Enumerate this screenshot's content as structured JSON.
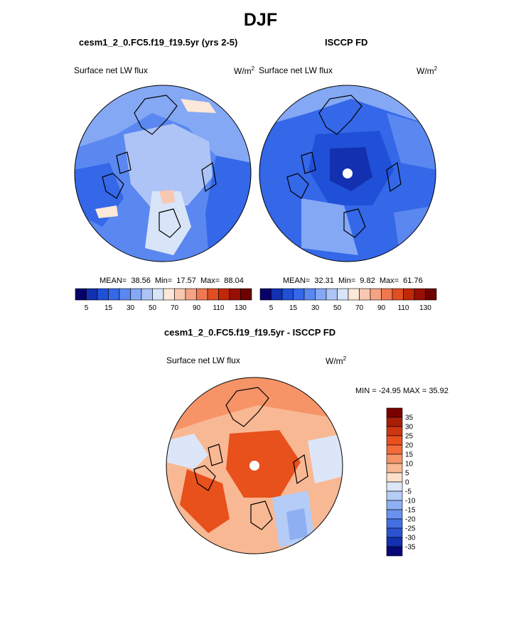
{
  "page": {
    "title": "DJF"
  },
  "panels": [
    {
      "title": "cesm1_2_0.FC5.f19_f19.5yr (yrs 2-5)",
      "variable": "Surface net LW flux",
      "units_base": "W/m",
      "units_exp": "2",
      "stats": {
        "mean_label": "MEAN=",
        "mean": "38.56",
        "min_label": "Min=",
        "min": "17.57",
        "max_label": "Max=",
        "max": "88.04"
      }
    },
    {
      "title": "ISCCP FD",
      "variable": "Surface net LW flux",
      "units_base": "W/m",
      "units_exp": "2",
      "stats": {
        "mean_label": "MEAN=",
        "mean": "32.31",
        "min_label": "Min=",
        "min": "9.82",
        "max_label": "Max=",
        "max": "61.76"
      }
    },
    {
      "title": "cesm1_2_0.FC5.f19_f19.5yr - ISCCP FD",
      "variable": "Surface net LW flux",
      "units_base": "W/m",
      "units_exp": "2",
      "minmax_text": "MIN = -24.95 MAX =  35.92"
    }
  ],
  "chart_data": [
    {
      "type": "heatmap",
      "projection": "north polar stereographic",
      "title": "cesm1_2_0.FC5.f19_f19.5yr (yrs 2-5)",
      "variable": "Surface net LW flux",
      "units": "W/m2",
      "mean": 38.56,
      "min": 17.57,
      "max": 88.04,
      "colorbar": {
        "orientation": "horizontal",
        "tick_labels": [
          "5",
          "15",
          "30",
          "50",
          "70",
          "90",
          "110",
          "130"
        ],
        "colors": [
          "#08006a",
          "#1230b0",
          "#2050d8",
          "#3468e8",
          "#5a88f0",
          "#84a8f4",
          "#aec4f6",
          "#d8e4f8",
          "#fce8d8",
          "#f8c8b0",
          "#f4a484",
          "#f07850",
          "#e04e22",
          "#c02808",
          "#980e04",
          "#6e0000"
        ]
      }
    },
    {
      "type": "heatmap",
      "projection": "north polar stereographic",
      "title": "ISCCP FD",
      "variable": "Surface net LW flux",
      "units": "W/m2",
      "mean": 32.31,
      "min": 9.82,
      "max": 61.76,
      "colorbar": {
        "orientation": "horizontal",
        "tick_labels": [
          "5",
          "15",
          "30",
          "50",
          "70",
          "90",
          "110",
          "130"
        ],
        "colors": [
          "#08006a",
          "#1230b0",
          "#2050d8",
          "#3468e8",
          "#5a88f0",
          "#84a8f4",
          "#aec4f6",
          "#d8e4f8",
          "#fce8d8",
          "#f8c8b0",
          "#f4a484",
          "#f07850",
          "#e04e22",
          "#c02808",
          "#980e04",
          "#6e0000"
        ]
      }
    },
    {
      "type": "heatmap",
      "projection": "north polar stereographic",
      "title": "cesm1_2_0.FC5.f19_f19.5yr - ISCCP FD",
      "variable": "Surface net LW flux",
      "units": "W/m2",
      "min": -24.95,
      "max": 35.92,
      "colorbar": {
        "orientation": "vertical",
        "tick_labels": [
          "35",
          "30",
          "25",
          "20",
          "15",
          "10",
          "5",
          "0",
          "-5",
          "-10",
          "-15",
          "-20",
          "-25",
          "-30",
          "-35"
        ],
        "colors": [
          "#7a0000",
          "#a81e06",
          "#cc3610",
          "#e8501c",
          "#f46a3a",
          "#f69468",
          "#f8b894",
          "#fce0cc",
          "#dde6f8",
          "#b4ccf6",
          "#8eb0f2",
          "#6892ee",
          "#4270e4",
          "#2a52d2",
          "#1230b0",
          "#060878"
        ]
      }
    }
  ]
}
